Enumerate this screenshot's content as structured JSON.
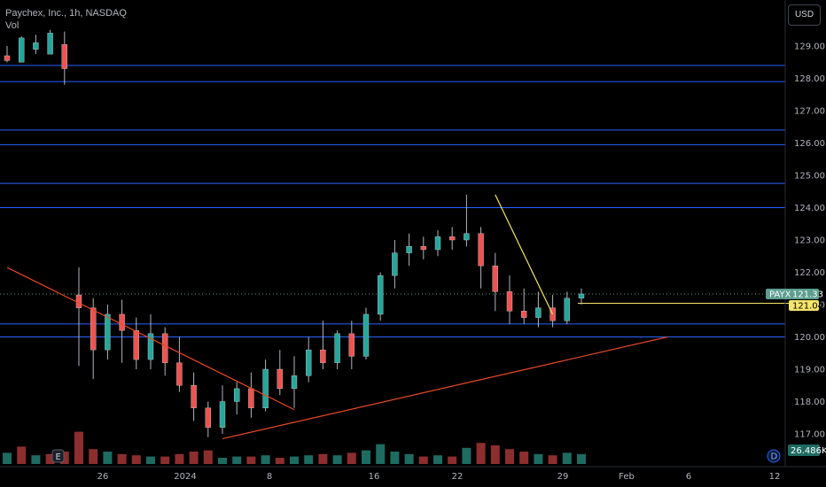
{
  "header": {
    "symbol_title": "Paychex, Inc., 1h, NASDAQ",
    "vol_label": "Vol",
    "currency": "USD"
  },
  "markers": {
    "earnings_marker": "E",
    "dividend_marker": "D"
  },
  "colors": {
    "up": "#26a69a",
    "down": "#ef5350",
    "wick": "#b2b5be",
    "hline": "#2962ff",
    "trend": "#e84a26",
    "yellow": "#f5e56b",
    "vol_up": "#1e6b62",
    "vol_down": "#8c2e2e",
    "price_tag": "#5c9e8f"
  },
  "chart_data": {
    "type": "candlestick",
    "title": "Paychex, Inc., 1h, NASDAQ",
    "y_axis": {
      "side": "right",
      "range": [
        116.5,
        129.6
      ],
      "ticks": [
        "117.00",
        "118.00",
        "119.00",
        "120.00",
        "121.00",
        "122.00",
        "123.00",
        "124.00",
        "125.00",
        "126.00",
        "127.00",
        "128.00",
        "129.00"
      ]
    },
    "x_axis": {
      "ticks": [
        "26",
        "2024",
        "8",
        "16",
        "22",
        "29",
        "Feb",
        "6",
        "12"
      ]
    },
    "horizontal_levels": [
      128.4,
      127.9,
      126.4,
      125.95,
      124.75,
      124.0,
      120.4,
      120.0
    ],
    "trendlines": [
      {
        "from": [
          0,
          122.15
        ],
        "to": [
          20,
          117.75
        ],
        "color": "trend"
      },
      {
        "from": [
          15,
          116.85
        ],
        "to": [
          46,
          120.0
        ],
        "color": "trend"
      },
      {
        "from": [
          34,
          124.4
        ],
        "to": [
          38,
          120.7
        ],
        "color": "yellow"
      }
    ],
    "candles": [
      [
        128.7,
        129.0,
        128.55,
        128.5
      ],
      [
        128.5,
        129.3,
        129.25,
        128.9
      ],
      [
        128.9,
        129.35,
        129.1,
        128.75
      ],
      [
        128.75,
        129.5,
        129.4,
        129.05
      ],
      [
        129.05,
        129.45,
        128.3,
        127.8
      ],
      [
        121.3,
        122.15,
        120.9,
        119.1
      ],
      [
        120.9,
        121.2,
        119.6,
        118.7
      ],
      [
        119.6,
        121.0,
        120.7,
        119.3
      ],
      [
        120.7,
        121.15,
        120.2,
        119.2
      ],
      [
        120.2,
        120.6,
        119.3,
        119.0
      ],
      [
        119.3,
        120.7,
        120.1,
        119.0
      ],
      [
        120.1,
        120.3,
        119.2,
        118.8
      ],
      [
        119.2,
        120.0,
        118.5,
        118.3
      ],
      [
        118.5,
        118.9,
        117.8,
        117.4
      ],
      [
        117.8,
        118.0,
        117.2,
        116.9
      ],
      [
        117.2,
        118.5,
        118.0,
        117.0
      ],
      [
        118.0,
        118.6,
        118.4,
        117.6
      ],
      [
        118.4,
        118.9,
        117.8,
        117.5
      ],
      [
        117.8,
        119.3,
        119.0,
        117.7
      ],
      [
        119.0,
        119.6,
        118.4,
        118.2
      ],
      [
        118.4,
        119.4,
        118.8,
        117.8
      ],
      [
        118.8,
        120.0,
        119.6,
        118.6
      ],
      [
        119.6,
        120.5,
        119.2,
        119.0
      ],
      [
        119.2,
        120.2,
        120.1,
        119.0
      ],
      [
        120.1,
        120.5,
        119.4,
        119.0
      ],
      [
        119.4,
        120.9,
        120.7,
        119.3
      ],
      [
        120.7,
        122.0,
        121.9,
        120.5
      ],
      [
        121.9,
        123.0,
        122.6,
        121.5
      ],
      [
        122.6,
        123.2,
        122.8,
        122.2
      ],
      [
        122.8,
        123.1,
        122.7,
        122.4
      ],
      [
        122.7,
        123.3,
        123.1,
        122.5
      ],
      [
        123.1,
        123.4,
        123.0,
        122.7
      ],
      [
        123.0,
        124.4,
        123.2,
        122.8
      ],
      [
        123.2,
        123.4,
        122.2,
        121.5
      ],
      [
        122.2,
        122.6,
        121.4,
        120.8
      ],
      [
        121.4,
        121.9,
        120.8,
        120.4
      ],
      [
        120.8,
        121.5,
        120.6,
        120.4
      ],
      [
        120.6,
        121.4,
        120.9,
        120.3
      ],
      [
        120.9,
        121.3,
        120.5,
        120.3
      ],
      [
        120.5,
        121.4,
        121.2,
        120.4
      ],
      [
        121.2,
        121.5,
        121.33,
        121.0
      ]
    ],
    "volume": [
      {
        "v": 0.9,
        "up": true
      },
      {
        "v": 1.4,
        "up": false
      },
      {
        "v": 0.7,
        "up": true
      },
      {
        "v": 0.8,
        "up": false
      },
      {
        "v": 1.0,
        "up": false
      },
      {
        "v": 2.6,
        "up": false
      },
      {
        "v": 1.2,
        "up": false
      },
      {
        "v": 1.0,
        "up": true
      },
      {
        "v": 0.8,
        "up": false
      },
      {
        "v": 0.7,
        "up": false
      },
      {
        "v": 0.6,
        "up": true
      },
      {
        "v": 0.6,
        "up": false
      },
      {
        "v": 0.8,
        "up": false
      },
      {
        "v": 1.0,
        "up": false
      },
      {
        "v": 1.1,
        "up": false
      },
      {
        "v": 0.5,
        "up": true
      },
      {
        "v": 0.6,
        "up": true
      },
      {
        "v": 0.6,
        "up": false
      },
      {
        "v": 0.7,
        "up": true
      },
      {
        "v": 0.5,
        "up": false
      },
      {
        "v": 0.6,
        "up": true
      },
      {
        "v": 0.7,
        "up": true
      },
      {
        "v": 0.8,
        "up": false
      },
      {
        "v": 0.7,
        "up": true
      },
      {
        "v": 0.9,
        "up": false
      },
      {
        "v": 1.1,
        "up": true
      },
      {
        "v": 1.6,
        "up": true
      },
      {
        "v": 1.0,
        "up": true
      },
      {
        "v": 0.8,
        "up": true
      },
      {
        "v": 0.6,
        "up": false
      },
      {
        "v": 0.7,
        "up": true
      },
      {
        "v": 0.6,
        "up": false
      },
      {
        "v": 1.3,
        "up": true
      },
      {
        "v": 1.7,
        "up": false
      },
      {
        "v": 1.5,
        "up": false
      },
      {
        "v": 1.2,
        "up": false
      },
      {
        "v": 1.0,
        "up": false
      },
      {
        "v": 0.8,
        "up": true
      },
      {
        "v": 0.7,
        "up": false
      },
      {
        "v": 0.9,
        "up": true
      },
      {
        "v": 0.8,
        "up": true
      }
    ],
    "last_price": {
      "ticker": "PAYX",
      "value": "121.33"
    },
    "level_label": "121.04",
    "volume_label": "26.486K"
  }
}
